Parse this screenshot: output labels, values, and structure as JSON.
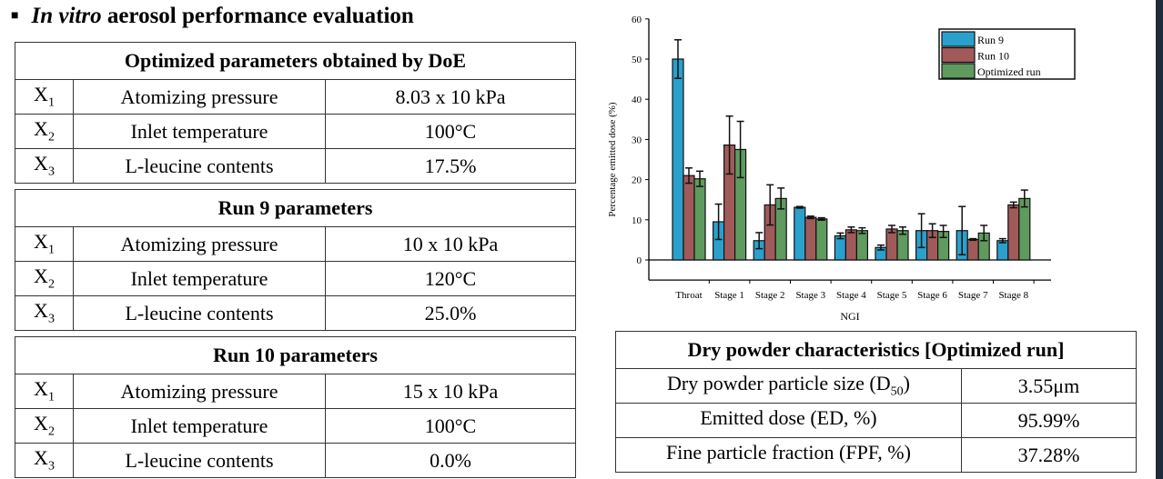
{
  "title": {
    "italic": "In vitro",
    "rest": " aerosol performance evaluation"
  },
  "tables": [
    {
      "header": "Optimized parameters obtained by DoE",
      "rows": [
        {
          "var": "X",
          "sub": "1",
          "name": "Atomizing pressure",
          "value": "8.03 x 10 kPa"
        },
        {
          "var": "X",
          "sub": "2",
          "name": "Inlet temperature",
          "value": "100°C"
        },
        {
          "var": "X",
          "sub": "3",
          "name": "L-leucine contents",
          "value": "17.5%"
        }
      ]
    },
    {
      "header": "Run 9 parameters",
      "rows": [
        {
          "var": "X",
          "sub": "1",
          "name": "Atomizing pressure",
          "value": "10 x 10 kPa"
        },
        {
          "var": "X",
          "sub": "2",
          "name": "Inlet temperature",
          "value": "120°C"
        },
        {
          "var": "X",
          "sub": "3",
          "name": "L-leucine contents",
          "value": "25.0%"
        }
      ]
    },
    {
      "header": "Run 10 parameters",
      "rows": [
        {
          "var": "X",
          "sub": "1",
          "name": "Atomizing pressure",
          "value": "15 x 10 kPa"
        },
        {
          "var": "X",
          "sub": "2",
          "name": "Inlet temperature",
          "value": "100°C"
        },
        {
          "var": "X",
          "sub": "3",
          "name": "L-leucine contents",
          "value": "0.0%"
        }
      ]
    }
  ],
  "dry": {
    "header": "Dry powder characteristics [Optimized run]",
    "rows": [
      {
        "name": "Dry powder particle size (D",
        "sub": "50",
        "close": ")",
        "value": "3.55μm"
      },
      {
        "name": "Emitted dose (ED, %)",
        "sub": "",
        "close": "",
        "value": "95.99%"
      },
      {
        "name": "Fine particle fraction (FPF, %)",
        "sub": "",
        "close": "",
        "value": "37.28%"
      }
    ]
  },
  "chart_data": {
    "type": "bar",
    "xlabel": "NGI",
    "ylabel": "Percentage emitted dose (%)",
    "ylim": [
      -5,
      60
    ],
    "yticks": [
      0,
      10,
      20,
      30,
      40,
      50,
      60
    ],
    "legend_position": "top-right",
    "categories": [
      "Throat",
      "Stage 1",
      "Stage 2",
      "Stage 3",
      "Stage 4",
      "Stage 5",
      "Stage 6",
      "Stage 7",
      "Stage 8"
    ],
    "series": [
      {
        "name": "Run 9",
        "color": "#2aa0cc",
        "values": [
          50,
          9.5,
          4.8,
          13.1,
          6.0,
          3.1,
          7.3,
          7.3,
          4.8
        ],
        "errors": [
          4.8,
          4.4,
          2,
          0.2,
          0.7,
          0.6,
          4.2,
          6,
          0.5
        ]
      },
      {
        "name": "Run 10",
        "color": "#a05a5a",
        "values": [
          21,
          28.6,
          13.7,
          10.6,
          7.5,
          7.7,
          7.3,
          5.1,
          13.7
        ],
        "errors": [
          1.9,
          7.2,
          5,
          0.3,
          0.7,
          0.9,
          1.7,
          0.2,
          0.7
        ]
      },
      {
        "name": "Optimized run",
        "color": "#5f9a5f",
        "values": [
          20.2,
          27.5,
          15.3,
          10.2,
          7.3,
          7.3,
          7.1,
          6.7,
          15.3
        ],
        "errors": [
          1.9,
          7,
          2.6,
          0.3,
          0.7,
          0.9,
          1.5,
          1.9,
          2.1
        ]
      }
    ]
  }
}
